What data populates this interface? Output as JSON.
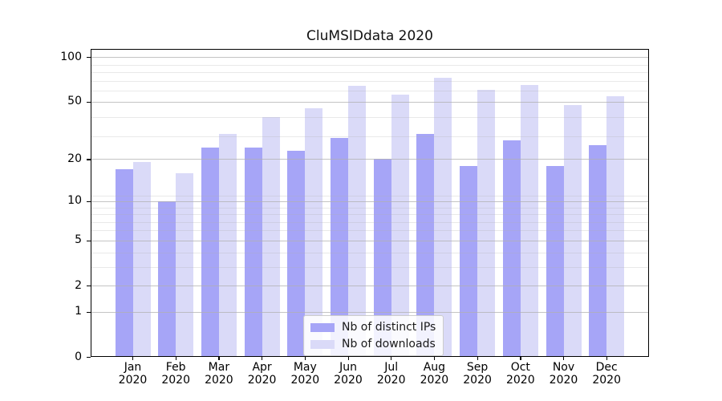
{
  "title": "CluMSIDdata 2020",
  "chart_data": {
    "type": "bar",
    "title": "CluMSIDdata 2020",
    "categories": [
      "Jan",
      "Feb",
      "Mar",
      "Apr",
      "May",
      "Jun",
      "Jul",
      "Aug",
      "Sep",
      "Oct",
      "Nov",
      "Dec"
    ],
    "category_year": "2020",
    "series": [
      {
        "name": "Nb of distinct IPs",
        "color": "#a6a5f7",
        "values": [
          17,
          10,
          24,
          24,
          23,
          28,
          20,
          30,
          18,
          27,
          18,
          25
        ]
      },
      {
        "name": "Nb of downloads",
        "color": "#dadaf8",
        "values": [
          19,
          16,
          30,
          39,
          45,
          64,
          56,
          72,
          60,
          65,
          47,
          54
        ]
      }
    ],
    "xlabel": "",
    "ylabel": "",
    "yscale": "log1p",
    "y_ticks": [
      100,
      50,
      20,
      10,
      5,
      2,
      1,
      0
    ],
    "y_minor_gridlines": [
      3,
      4,
      6,
      7,
      8,
      9,
      11,
      29,
      39,
      59,
      69,
      79,
      89
    ],
    "ylim": [
      0,
      113
    ],
    "grid": true,
    "grid_above_bars": true,
    "legend_position": "lower center"
  },
  "colors": {
    "bar_dark": "#a6a5f7",
    "bar_light": "#dadaf8",
    "grid": "#b0b0b0",
    "axis": "#000000",
    "legend_border": "#cccccc"
  }
}
